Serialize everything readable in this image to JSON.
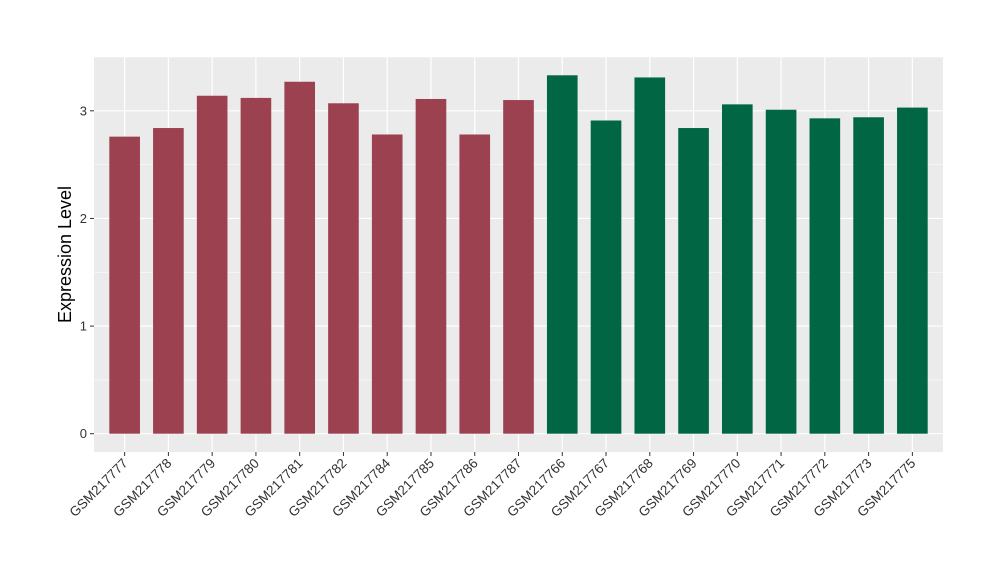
{
  "chart_data": {
    "type": "bar",
    "ylabel": "Expression Level",
    "xlabel": "",
    "ylim": [
      -0.17,
      3.5
    ],
    "yticks": [
      0,
      1,
      2,
      3
    ],
    "grid": true,
    "legend": "none",
    "colors": {
      "group_a": "#9B4150",
      "group_b": "#006644",
      "panel_bg": "#EBEBEB",
      "grid": "#FFFFFF"
    },
    "categories": [
      "GSM217777",
      "GSM217778",
      "GSM217779",
      "GSM217780",
      "GSM217781",
      "GSM217782",
      "GSM217784",
      "GSM217785",
      "GSM217786",
      "GSM217787",
      "GSM217766",
      "GSM217767",
      "GSM217768",
      "GSM217769",
      "GSM217770",
      "GSM217771",
      "GSM217772",
      "GSM217773",
      "GSM217775"
    ],
    "values": [
      2.76,
      2.84,
      3.14,
      3.12,
      3.27,
      3.07,
      2.78,
      3.11,
      2.78,
      3.1,
      3.33,
      2.91,
      3.31,
      2.84,
      3.06,
      3.01,
      2.93,
      2.94,
      3.03
    ],
    "groups": [
      "a",
      "a",
      "a",
      "a",
      "a",
      "a",
      "a",
      "a",
      "a",
      "a",
      "b",
      "b",
      "b",
      "b",
      "b",
      "b",
      "b",
      "b",
      "b"
    ]
  }
}
